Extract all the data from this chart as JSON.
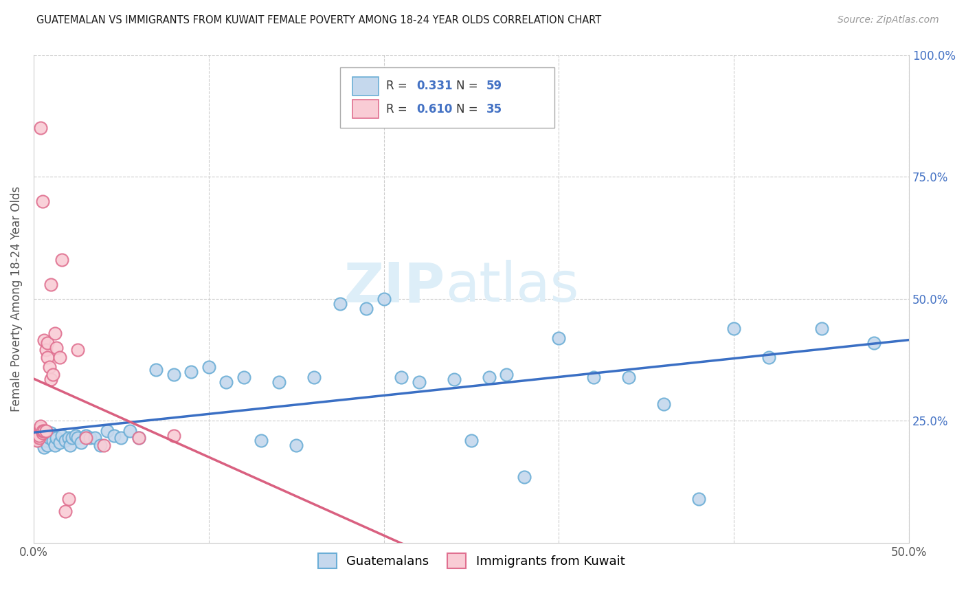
{
  "title": "GUATEMALAN VS IMMIGRANTS FROM KUWAIT FEMALE POVERTY AMONG 18-24 YEAR OLDS CORRELATION CHART",
  "source": "Source: ZipAtlas.com",
  "ylabel": "Female Poverty Among 18-24 Year Olds",
  "xlim": [
    0.0,
    0.5
  ],
  "ylim": [
    0.0,
    1.0
  ],
  "legend_R1": "0.331",
  "legend_N1": "59",
  "legend_R2": "0.610",
  "legend_N2": "35",
  "blue_face": "#c5d8ed",
  "blue_edge": "#6baed6",
  "pink_face": "#f9ccd5",
  "pink_edge": "#e07090",
  "blue_line": "#3a6fc4",
  "pink_line": "#d96080",
  "grid_color": "#cccccc",
  "right_tick_color": "#4472c4",
  "tick_color": "#555555",
  "guatemalan_x": [
    0.002,
    0.003,
    0.004,
    0.005,
    0.006,
    0.007,
    0.008,
    0.009,
    0.01,
    0.011,
    0.012,
    0.013,
    0.015,
    0.016,
    0.018,
    0.02,
    0.021,
    0.022,
    0.024,
    0.025,
    0.027,
    0.03,
    0.032,
    0.035,
    0.038,
    0.042,
    0.046,
    0.05,
    0.055,
    0.06,
    0.07,
    0.08,
    0.09,
    0.1,
    0.11,
    0.12,
    0.13,
    0.14,
    0.15,
    0.16,
    0.175,
    0.19,
    0.2,
    0.21,
    0.22,
    0.24,
    0.25,
    0.26,
    0.27,
    0.28,
    0.3,
    0.32,
    0.34,
    0.36,
    0.38,
    0.4,
    0.42,
    0.45,
    0.48
  ],
  "guatemalan_y": [
    0.22,
    0.21,
    0.215,
    0.225,
    0.195,
    0.21,
    0.2,
    0.215,
    0.225,
    0.21,
    0.2,
    0.215,
    0.205,
    0.22,
    0.21,
    0.215,
    0.2,
    0.215,
    0.22,
    0.215,
    0.205,
    0.22,
    0.215,
    0.215,
    0.2,
    0.23,
    0.22,
    0.215,
    0.23,
    0.215,
    0.355,
    0.345,
    0.35,
    0.36,
    0.33,
    0.34,
    0.21,
    0.33,
    0.2,
    0.34,
    0.49,
    0.48,
    0.5,
    0.34,
    0.33,
    0.335,
    0.21,
    0.34,
    0.345,
    0.135,
    0.42,
    0.34,
    0.34,
    0.285,
    0.09,
    0.44,
    0.38,
    0.44,
    0.41
  ],
  "kuwait_x": [
    0.001,
    0.001,
    0.002,
    0.002,
    0.002,
    0.003,
    0.003,
    0.003,
    0.004,
    0.004,
    0.004,
    0.005,
    0.005,
    0.005,
    0.006,
    0.006,
    0.007,
    0.007,
    0.008,
    0.008,
    0.009,
    0.01,
    0.01,
    0.011,
    0.012,
    0.013,
    0.015,
    0.016,
    0.018,
    0.02,
    0.025,
    0.03,
    0.04,
    0.06,
    0.08
  ],
  "kuwait_y": [
    0.22,
    0.215,
    0.215,
    0.225,
    0.21,
    0.225,
    0.215,
    0.22,
    0.235,
    0.24,
    0.85,
    0.225,
    0.23,
    0.7,
    0.23,
    0.415,
    0.23,
    0.395,
    0.41,
    0.38,
    0.36,
    0.335,
    0.53,
    0.345,
    0.43,
    0.4,
    0.38,
    0.58,
    0.065,
    0.09,
    0.395,
    0.215,
    0.2,
    0.215,
    0.22
  ]
}
